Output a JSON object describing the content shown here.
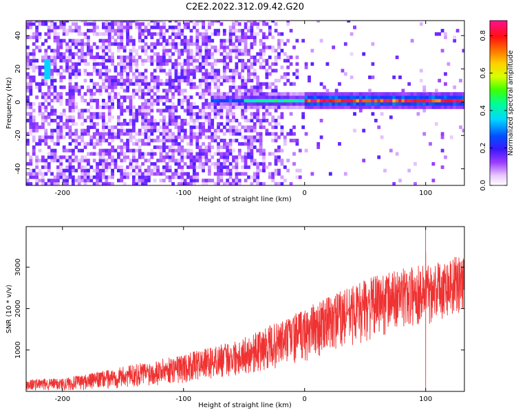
{
  "title": "C2E2.2022.312.09.42.G20",
  "chart_data": [
    {
      "type": "heatmap",
      "xlabel": "Height of straight line (km)",
      "ylabel": "Frequency (Hz)",
      "xlim": [
        -230,
        132
      ],
      "ylim": [
        -50,
        49
      ],
      "xticks": [
        -200,
        -100,
        0,
        100
      ],
      "yticks": [
        -40,
        -20,
        0,
        20,
        40
      ],
      "colorbar": {
        "label": "Normalized spectral amplitude",
        "range": [
          0,
          0.88
        ],
        "ticks": [
          0.0,
          0.2,
          0.4,
          0.6,
          0.8
        ],
        "colormap": "rainbow (white-violet-blue-cyan-green-yellow-orange-red-magenta)"
      },
      "features": [
        {
          "description": "broadband noise (amplitude ~0.08-0.18) for heights below ~-50 km, fading by ~0 km",
          "x_range": [
            -230,
            0
          ],
          "freq_range": [
            -50,
            49
          ]
        },
        {
          "description": "tone near 0 Hz",
          "x_range": [
            -80,
            132
          ],
          "freq_hz": 0,
          "peak_amplitude": 0.88
        },
        {
          "description": "faint streak",
          "x_range": [
            -216,
            -212
          ],
          "freq_range": [
            13,
            24
          ]
        }
      ]
    },
    {
      "type": "line",
      "xlabel": "Height of straight line (km)",
      "ylabel": "SNR (10 * v/v)",
      "xlim": [
        -230,
        132
      ],
      "ylim": [
        0,
        3980
      ],
      "xticks": [
        -200,
        -100,
        0,
        100
      ],
      "yticks": [
        1000,
        2000,
        3000
      ],
      "grid": false,
      "series": [
        {
          "color": "#f03232",
          "envelope": {
            "x": [
              -230,
              -200,
              -180,
              -150,
              -120,
              -100,
              -80,
              -50,
              -20,
              0,
              20,
              50,
              70,
              100,
              132
            ],
            "lower": [
              20,
              20,
              30,
              80,
              150,
              200,
              280,
              400,
              550,
              700,
              900,
              1200,
              1400,
              1600,
              1900
            ],
            "upper": [
              300,
              320,
              420,
              600,
              780,
              900,
              1050,
              1300,
              1700,
              2000,
              2300,
              2700,
              2900,
              3100,
              3300
            ]
          },
          "spikes": [
            {
              "x": 100,
              "min": 50,
              "max": 3950
            }
          ]
        }
      ]
    }
  ]
}
